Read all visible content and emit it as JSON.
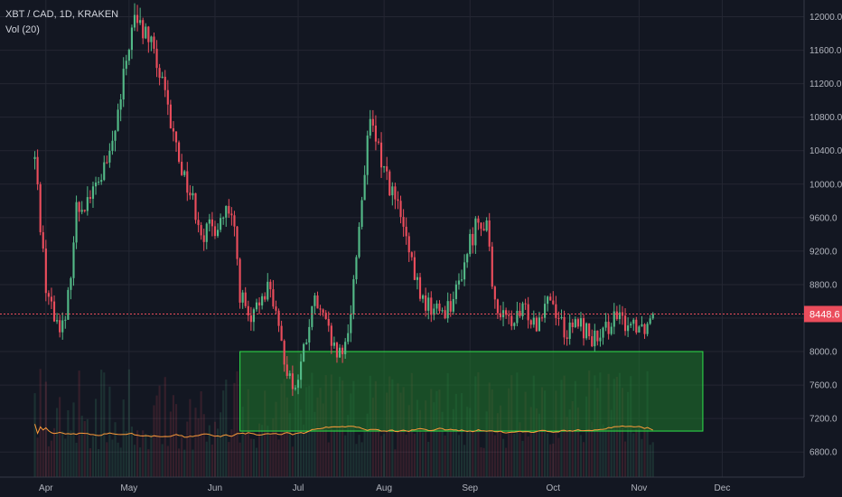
{
  "header": {
    "symbol": "XBT / CAD, 1D, KRAKEN",
    "volume_label": "Vol (20)"
  },
  "colors": {
    "background": "#131722",
    "grid": "#242733",
    "up": "#53b987",
    "down": "#eb4d5c",
    "volume_ma": "#ff9c3a",
    "zone_fill": "#1f7a2c",
    "zone_stroke": "#2fe24a",
    "price_line": "#eb4d5c"
  },
  "chart_data": {
    "type": "candlestick",
    "title": "",
    "x_ticks": [
      "Apr",
      "May",
      "Jun",
      "Jul",
      "Aug",
      "Sep",
      "Oct",
      "Nov",
      "Dec"
    ],
    "y_ticks": [
      6800,
      7200,
      7600,
      8000,
      8400,
      8800,
      9200,
      9600,
      10000,
      10400,
      10800,
      11200,
      11600,
      12000
    ],
    "ylim": [
      6500,
      12200
    ],
    "last_price": 8448.6,
    "last_price_label": "8448.6",
    "grid": true,
    "date_range": [
      "2019-03-28",
      "2019-11-06"
    ],
    "close_series_keypoints": [
      [
        "2019-03-28",
        10300
      ],
      [
        "2019-04-01",
        8800
      ],
      [
        "2019-04-04",
        8400
      ],
      [
        "2019-04-08",
        8300
      ],
      [
        "2019-04-12",
        9700
      ],
      [
        "2019-04-18",
        9900
      ],
      [
        "2019-04-24",
        10300
      ],
      [
        "2019-04-28",
        11000
      ],
      [
        "2019-05-01",
        11700
      ],
      [
        "2019-05-03",
        11950
      ],
      [
        "2019-05-08",
        11750
      ],
      [
        "2019-05-12",
        11300
      ],
      [
        "2019-05-16",
        10700
      ],
      [
        "2019-05-20",
        10200
      ],
      [
        "2019-05-24",
        9800
      ],
      [
        "2019-05-28",
        9400
      ],
      [
        "2019-06-01",
        9500
      ],
      [
        "2019-06-05",
        9650
      ],
      [
        "2019-06-08",
        9450
      ],
      [
        "2019-06-10",
        8700
      ],
      [
        "2019-06-14",
        8300
      ],
      [
        "2019-06-18",
        8700
      ],
      [
        "2019-06-21",
        8800
      ],
      [
        "2019-06-24",
        8200
      ],
      [
        "2019-06-27",
        7800
      ],
      [
        "2019-06-30",
        7550
      ],
      [
        "2019-07-03",
        8000
      ],
      [
        "2019-07-07",
        8600
      ],
      [
        "2019-07-11",
        8300
      ],
      [
        "2019-07-14",
        8000
      ],
      [
        "2019-07-17",
        7900
      ],
      [
        "2019-07-20",
        8500
      ],
      [
        "2019-07-23",
        9500
      ],
      [
        "2019-07-25",
        10200
      ],
      [
        "2019-07-27",
        10700
      ],
      [
        "2019-07-30",
        10400
      ],
      [
        "2019-08-03",
        10000
      ],
      [
        "2019-08-07",
        9600
      ],
      [
        "2019-08-11",
        9000
      ],
      [
        "2019-08-15",
        8600
      ],
      [
        "2019-08-19",
        8500
      ],
      [
        "2019-08-23",
        8500
      ],
      [
        "2019-08-27",
        8700
      ],
      [
        "2019-08-31",
        9200
      ],
      [
        "2019-09-04",
        9600
      ],
      [
        "2019-09-07",
        9550
      ],
      [
        "2019-09-09",
        8700
      ],
      [
        "2019-09-13",
        8400
      ],
      [
        "2019-09-17",
        8350
      ],
      [
        "2019-09-21",
        8500
      ],
      [
        "2019-09-25",
        8350
      ],
      [
        "2019-09-29",
        8700
      ],
      [
        "2019-10-02",
        8500
      ],
      [
        "2019-10-06",
        8200
      ],
      [
        "2019-10-10",
        8350
      ],
      [
        "2019-10-14",
        8200
      ],
      [
        "2019-10-18",
        8100
      ],
      [
        "2019-10-22",
        8400
      ],
      [
        "2019-10-26",
        8350
      ],
      [
        "2019-10-30",
        8350
      ],
      [
        "2019-11-03",
        8300
      ],
      [
        "2019-11-06",
        8448.6
      ]
    ],
    "annotations": [
      {
        "type": "rectangle",
        "from": "2019-06-10",
        "to": "2019-11-24",
        "price_low": 7050,
        "price_high": 8000,
        "label": ""
      }
    ]
  }
}
